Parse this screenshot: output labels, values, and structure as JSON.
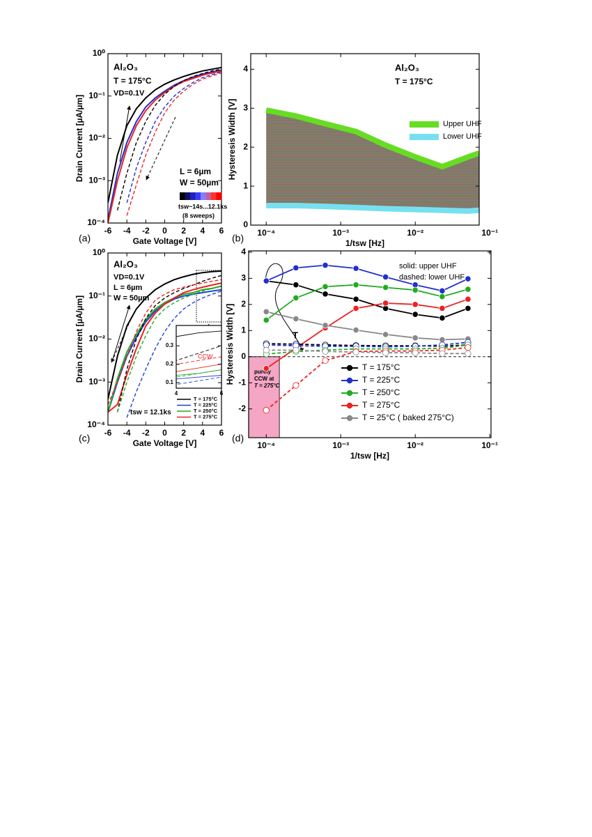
{
  "chart_data": [
    {
      "type": "line",
      "panel_label": "(a)",
      "xlabel": "Gate Voltage [V]",
      "ylabel": "Drain Current [µA/µm]",
      "xlim": [
        -6,
        6
      ],
      "ylim": [
        0.0001,
        1
      ],
      "ylog": true,
      "xticks": [
        -6,
        -4,
        -2,
        0,
        2,
        4,
        6
      ],
      "yticks": [
        {
          "value": 0.0001,
          "label": "10⁻⁴"
        },
        {
          "value": 0.001,
          "label": "10⁻³"
        },
        {
          "value": 0.01,
          "label": "10⁻²"
        },
        {
          "value": 0.1,
          "label": "10⁻¹"
        },
        {
          "value": 1,
          "label": "10⁰"
        }
      ],
      "x": [
        -6,
        -5,
        -4,
        -3,
        -2,
        -1,
        0,
        1,
        2,
        3,
        4,
        5,
        6
      ],
      "series": [
        {
          "color": "#000000",
          "values": [
            0.0003,
            0.004,
            0.02,
            0.05,
            0.09,
            0.14,
            0.19,
            0.24,
            0.29,
            0.34,
            0.39,
            0.43,
            0.47
          ]
        },
        {
          "color": "#1f2fd0",
          "values": [
            0.00012,
            0.0015,
            0.008,
            0.025,
            0.055,
            0.09,
            0.13,
            0.18,
            0.23,
            0.28,
            0.33,
            0.37,
            0.41
          ]
        },
        {
          "color": "#ee2020",
          "values": [
            0.0001,
            0.001,
            0.006,
            0.02,
            0.045,
            0.08,
            0.12,
            0.17,
            0.22,
            0.26,
            0.31,
            0.35,
            0.39
          ]
        },
        {
          "color": "#000000",
          "dashed": true,
          "values": [
            null,
            0.0002,
            0.0015,
            0.008,
            0.025,
            0.06,
            0.11,
            0.17,
            0.23,
            0.29,
            0.34,
            0.39,
            0.43
          ]
        },
        {
          "color": "#1f2fd0",
          "dashed": true,
          "values": [
            null,
            null,
            0.0003,
            0.002,
            0.008,
            0.025,
            0.055,
            0.1,
            0.15,
            0.21,
            0.27,
            0.32,
            0.37
          ]
        },
        {
          "color": "#ee2020",
          "dashed": true,
          "values": [
            null,
            null,
            0.00015,
            0.0008,
            0.004,
            0.014,
            0.04,
            0.08,
            0.13,
            0.19,
            0.25,
            0.3,
            0.35
          ]
        }
      ],
      "colorbar": {
        "colors": [
          "#000000",
          "#101060",
          "#2020c0",
          "#3a3aff",
          "#8080ff",
          "#c060a0",
          "#ff3030",
          "#ff0000"
        ],
        "label": "tsw~14s...12.1ks"
      },
      "annotations": [
        "Al₂O₃",
        "T = 175°C",
        "VD=0.1V",
        "L = 6µm",
        "W = 50µm",
        "(8 sweeps)"
      ]
    },
    {
      "type": "band",
      "panel_label": "(b)",
      "xlabel": "1/tsw [Hz]",
      "ylabel": "Hysteresis Width [V]",
      "xlim": [
        6.2e-05,
        0.072
      ],
      "xlog": true,
      "ylim": [
        0,
        4.4
      ],
      "xticks": [
        {
          "value": 0.0001,
          "label": "10⁻⁴"
        },
        {
          "value": 0.001,
          "label": "10⁻³"
        },
        {
          "value": 0.01,
          "label": "10⁻²"
        },
        {
          "value": 0.1,
          "label": "10⁻¹"
        }
      ],
      "yticks": [
        0,
        1,
        2,
        3,
        4
      ],
      "x": [
        0.0001,
        0.00025,
        0.00062,
        0.0016,
        0.004,
        0.01,
        0.023,
        0.051,
        0.072
      ],
      "series": [
        {
          "name": "Upper UHF",
          "color": "#66dd22",
          "values": [
            2.95,
            2.8,
            2.6,
            2.4,
            2.05,
            1.75,
            1.5,
            1.75,
            1.85
          ]
        },
        {
          "name": "Lower UHF",
          "color": "#77e0f0",
          "values": [
            0.5,
            0.5,
            0.48,
            0.45,
            0.42,
            0.4,
            0.38,
            0.36,
            0.38
          ]
        }
      ],
      "annotations": [
        "Al₂O₃",
        "T = 175°C"
      ]
    },
    {
      "type": "line",
      "panel_label": "(c)",
      "xlabel": "Gate Voltage [V]",
      "ylabel": "Drain Current [µA/µm]",
      "xlim": [
        -6,
        6
      ],
      "ylim": [
        0.0001,
        1
      ],
      "ylog": true,
      "xticks": [
        -6,
        -4,
        -2,
        0,
        2,
        4,
        6
      ],
      "yticks": [
        {
          "value": 0.0001,
          "label": "10⁻⁴"
        },
        {
          "value": 0.001,
          "label": "10⁻³"
        },
        {
          "value": 0.01,
          "label": "10⁻²"
        },
        {
          "value": 0.1,
          "label": "10⁻¹"
        },
        {
          "value": 1,
          "label": "10⁰"
        }
      ],
      "x": [
        -6,
        -5,
        -4,
        -3,
        -2,
        -1,
        0,
        1,
        2,
        3,
        4,
        5,
        6
      ],
      "series": [
        {
          "name": "T = 175°C",
          "color": "#000000",
          "values": [
            0.0004,
            0.004,
            0.02,
            0.05,
            0.09,
            0.14,
            0.19,
            0.24,
            0.28,
            0.32,
            0.35,
            0.37,
            0.38
          ]
        },
        {
          "name": "T = 225°C",
          "color": "#1f3fd0",
          "values": [
            0.0002,
            0.001,
            0.004,
            0.011,
            0.025,
            0.045,
            0.065,
            0.085,
            0.1,
            0.11,
            0.12,
            0.13,
            0.14
          ]
        },
        {
          "name": "T = 250°C",
          "color": "#22aa22",
          "values": [
            0.0002,
            0.0012,
            0.005,
            0.013,
            0.028,
            0.05,
            0.07,
            0.09,
            0.11,
            0.12,
            0.14,
            0.15,
            0.17
          ]
        },
        {
          "name": "T = 275°C",
          "color": "#ee2020",
          "values": [
            0.0002,
            0.0003,
            0.0015,
            0.006,
            0.02,
            0.04,
            0.065,
            0.09,
            0.12,
            0.14,
            0.16,
            0.18,
            0.2
          ]
        },
        {
          "color": "#000000",
          "dashed": true,
          "values": [
            null,
            0.0002,
            0.002,
            0.01,
            0.03,
            0.06,
            0.09,
            0.12,
            0.15,
            0.18,
            0.22,
            0.26,
            0.3
          ]
        },
        {
          "color": "#1f3fd0",
          "dashed": true,
          "values": [
            null,
            null,
            0.00015,
            0.0006,
            0.002,
            0.006,
            0.015,
            0.03,
            0.05,
            0.07,
            0.09,
            0.11,
            0.13
          ]
        },
        {
          "color": "#22aa22",
          "dashed": true,
          "values": [
            null,
            0.0002,
            0.001,
            0.004,
            0.012,
            0.03,
            0.05,
            0.07,
            0.09,
            0.11,
            0.13,
            0.15,
            0.17
          ]
        },
        {
          "color": "#ee2020",
          "dashed": true,
          "values": [
            0.0003,
            0.001,
            0.004,
            0.015,
            0.04,
            0.08,
            0.11,
            0.14,
            0.16,
            0.18,
            0.2,
            0.22,
            0.24
          ]
        }
      ],
      "inset": {
        "xlim": [
          4,
          6
        ],
        "ylim": [
          0.07,
          0.41
        ],
        "xticks": [
          4,
          6
        ],
        "yticks": [
          0.1,
          0.2,
          0.3
        ]
      },
      "annotations": [
        "Al₂O₃",
        "VD=0.1V",
        "L = 6µm",
        "W = 50µm",
        "tsw = 12.1ks",
        "CCW"
      ]
    },
    {
      "type": "line",
      "panel_label": "(d)",
      "xlabel": "1/tsw [Hz]",
      "ylabel": "Hysteresis Width [V]",
      "xlim": [
        5.8e-05,
        0.104
      ],
      "xlog": true,
      "ylim": [
        -3.1,
        4.05
      ],
      "xticks": [
        {
          "value": 0.0001,
          "label": "10⁻⁴"
        },
        {
          "value": 0.001,
          "label": "10⁻³"
        },
        {
          "value": 0.01,
          "label": "10⁻²"
        },
        {
          "value": 0.1,
          "label": "10⁻¹"
        }
      ],
      "yticks": [
        -2,
        -1,
        0,
        1,
        2,
        3,
        4
      ],
      "x": [
        0.0001,
        0.00025,
        0.00062,
        0.0016,
        0.004,
        0.01,
        0.023,
        0.051
      ],
      "zero_line": true,
      "series": [
        {
          "name": "T = 175°C",
          "color": "#000000",
          "markers": "filled",
          "values": [
            2.9,
            2.75,
            2.4,
            2.2,
            1.85,
            1.62,
            1.48,
            1.85
          ]
        },
        {
          "name": "T = 225°C",
          "color": "#1f2fd0",
          "markers": "filled",
          "values": [
            2.9,
            3.4,
            3.5,
            3.38,
            3.05,
            2.75,
            2.52,
            2.98
          ]
        },
        {
          "name": "T = 250°C",
          "color": "#22aa22",
          "markers": "filled",
          "values": [
            1.4,
            2.25,
            2.68,
            2.75,
            2.65,
            2.55,
            2.3,
            2.58
          ]
        },
        {
          "name": "T = 275°C",
          "color": "#ee2020",
          "markers": "filled",
          "x": [
            0.0001,
            0.00062,
            0.0016,
            0.004,
            0.01,
            0.023,
            0.051
          ],
          "values": [
            -0.45,
            1.1,
            1.85,
            2.05,
            2.0,
            1.85,
            2.2
          ]
        },
        {
          "name": "T = 25°C ( baked 275°C)",
          "color": "#888888",
          "markers": "filled",
          "values": [
            1.72,
            1.45,
            1.2,
            1.02,
            0.85,
            0.72,
            0.65,
            0.68
          ]
        },
        {
          "color": "#000000",
          "dashed": true,
          "markers": "open",
          "values": [
            0.5,
            0.48,
            0.45,
            0.43,
            0.42,
            0.42,
            0.4,
            0.45
          ]
        },
        {
          "color": "#1f2fd0",
          "dashed": true,
          "markers": "open",
          "values": [
            0.45,
            0.42,
            0.4,
            0.4,
            0.38,
            0.4,
            0.45,
            0.55
          ]
        },
        {
          "color": "#22aa22",
          "dashed": true,
          "markers": "open",
          "values": [
            0.1,
            0.2,
            0.25,
            0.3,
            0.3,
            0.3,
            0.32,
            0.45
          ]
        },
        {
          "color": "#ee2020",
          "dashed": true,
          "markers": "open",
          "values": [
            -2.05,
            -1.1,
            -0.15,
            0.2,
            0.22,
            0.22,
            0.25,
            0.35
          ]
        },
        {
          "color": "#888888",
          "dashed": true,
          "markers": "open",
          "values": [
            0.25,
            0.25,
            0.2,
            0.18,
            0.15,
            0.15,
            0.12,
            0.12
          ]
        }
      ],
      "shaded_region": {
        "x": [
          5.8e-05,
          0.00015
        ],
        "y": [
          -3.1,
          0
        ],
        "color": "#f4a6c4",
        "text": [
          "purely",
          "CCW at",
          "T = 275°C"
        ]
      },
      "annotations": [
        "solid: upper UHF",
        "dashed: lower UHF",
        "T"
      ]
    }
  ]
}
